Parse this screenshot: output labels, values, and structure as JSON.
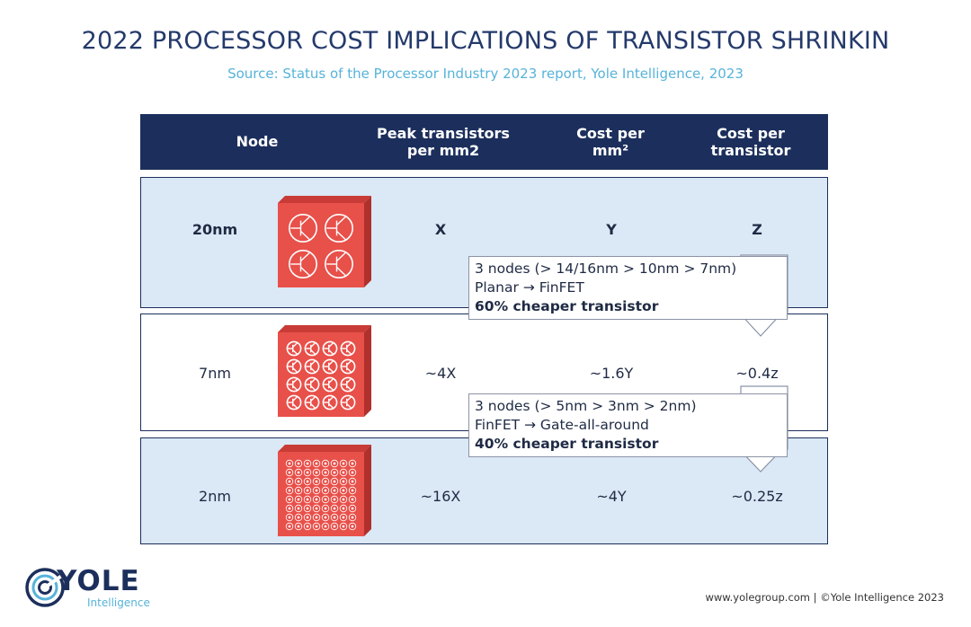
{
  "title": "2022 PROCESSOR COST IMPLICATIONS OF TRANSISTOR SHRINKIN",
  "subtitle": "Source: Status of the Processor Industry 2023 report, Yole Intelligence, 2023",
  "table": {
    "headers": [
      "Node",
      "Peak transistors\nper mm2",
      "Cost per\nmm²",
      "Cost per\ntransistor"
    ],
    "rows": [
      {
        "node": "20nm",
        "transistors": "X",
        "cost_mm2": "Y",
        "cost_transistor": "Z",
        "grid": 2
      },
      {
        "node": "7nm",
        "transistors": "~4X",
        "cost_mm2": "~1.6Y",
        "cost_transistor": "~0.4z",
        "grid": 4
      },
      {
        "node": "2nm",
        "transistors": "~16X",
        "cost_mm2": "~4Y",
        "cost_transistor": "~0.25z",
        "grid": 8
      }
    ]
  },
  "callouts": [
    {
      "line1": "3 nodes (> 14/16nm > 10nm > 7nm)",
      "line2": "Planar → FinFET",
      "line3": "60% cheaper transistor"
    },
    {
      "line1": "3 nodes (> 5nm > 3nm > 2nm)",
      "line2": "FinFET → Gate-all-around",
      "line3": "40% cheaper transistor"
    }
  ],
  "logo": {
    "name": "YOLE",
    "sub": "Intelligence"
  },
  "footer": "www.yolegroup.com | ©Yole Intelligence 2023",
  "colors": {
    "navy": "#1c2f5c",
    "row_shade": "#dbe8f5",
    "chip_red": "#e8504a",
    "accent": "#57b3d9"
  }
}
